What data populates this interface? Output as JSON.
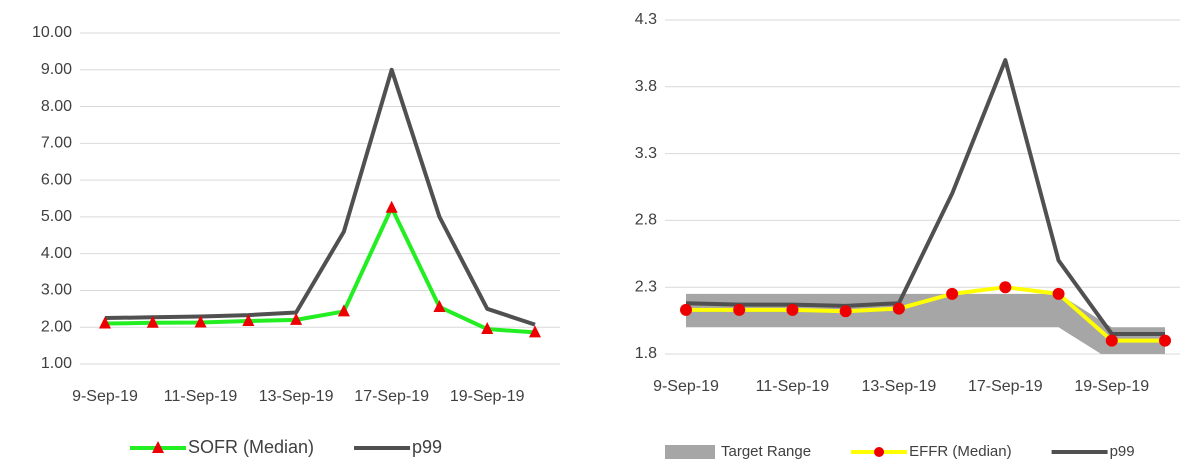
{
  "chart_data": [
    {
      "type": "line",
      "categories": [
        "9-Sep-19",
        null,
        "11-Sep-19",
        null,
        "13-Sep-19",
        null,
        "17-Sep-19",
        null,
        "19-Sep-19",
        null
      ],
      "ylim": [
        1,
        10
      ],
      "yticks": [
        {
          "value": 1,
          "label": "1.00"
        },
        {
          "value": 2,
          "label": "2.00"
        },
        {
          "value": 3,
          "label": "3.00"
        },
        {
          "value": 4,
          "label": "4.00"
        },
        {
          "value": 5,
          "label": "5.00"
        },
        {
          "value": 6,
          "label": "6.00"
        },
        {
          "value": 7,
          "label": "7.00"
        },
        {
          "value": 8,
          "label": "8.00"
        },
        {
          "value": 9,
          "label": "9.00"
        },
        {
          "value": 10,
          "label": "10.00"
        }
      ],
      "grid": true,
      "legend": "bottom",
      "series": [
        {
          "name": "SOFR (Median)",
          "kind": "line",
          "color": "#22ee22",
          "marker": "triangle",
          "marker_color": "#ee0000",
          "values": [
            2.1,
            2.12,
            2.13,
            2.17,
            2.2,
            2.43,
            5.25,
            2.55,
            1.95,
            1.86
          ]
        },
        {
          "name": "p99",
          "kind": "line",
          "color": "#505050",
          "values": [
            2.25,
            2.27,
            2.29,
            2.33,
            2.4,
            4.6,
            9.0,
            5.0,
            2.5,
            2.07
          ]
        }
      ]
    },
    {
      "type": "line",
      "categories": [
        "9-Sep-19",
        null,
        "11-Sep-19",
        null,
        "13-Sep-19",
        null,
        "17-Sep-19",
        null,
        "19-Sep-19",
        null
      ],
      "ylim": [
        1.8,
        4.3
      ],
      "yticks": [
        1.8,
        2.3,
        2.8,
        3.3,
        3.8,
        4.3
      ],
      "grid": true,
      "legend": "bottom",
      "series": [
        {
          "name": "Target Range",
          "kind": "range",
          "color": "#a6a6a6",
          "low": [
            2.0,
            2.0,
            2.0,
            2.0,
            2.0,
            2.0,
            2.0,
            2.0,
            1.75,
            1.75
          ],
          "high": [
            2.25,
            2.25,
            2.25,
            2.25,
            2.25,
            2.25,
            2.25,
            2.25,
            2.0,
            2.0
          ]
        },
        {
          "name": "EFFR (Median)",
          "kind": "line",
          "color": "#ffff00",
          "marker": "circle",
          "marker_color": "#ee0000",
          "values": [
            2.13,
            2.13,
            2.13,
            2.12,
            2.14,
            2.25,
            2.3,
            2.25,
            1.9,
            1.9
          ]
        },
        {
          "name": "p99",
          "kind": "line",
          "color": "#505050",
          "values": [
            2.18,
            2.17,
            2.17,
            2.16,
            2.18,
            3.0,
            4.0,
            2.5,
            1.95,
            1.95
          ]
        }
      ]
    }
  ]
}
